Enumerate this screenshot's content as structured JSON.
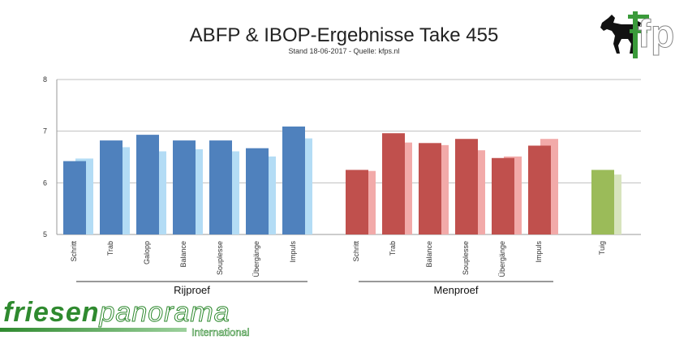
{
  "header": {
    "title": "ABFP & IBOP-Ergebnisse Take 455",
    "subtitle": "Stand 18-06-2017 - Quelle: kfps.nl"
  },
  "logo": {
    "letters": "fp",
    "icon": "horse-silhouette-icon"
  },
  "brand": {
    "main_part1": "friesen",
    "main_part2": "panorama",
    "sub": "International"
  },
  "chart_data": {
    "type": "bar",
    "ylim": [
      5,
      8
    ],
    "yticks": [
      "5",
      "6",
      "7",
      "8"
    ],
    "grid": true,
    "groups": [
      {
        "label": "Rijproef",
        "categories": [
          "Schritt",
          "Trab",
          "Galopp",
          "Balance",
          "Souplesse",
          "Übergänge",
          "Impuls"
        ],
        "colors": {
          "primary": "#4f81bd",
          "secondary": "#b3dcf5"
        },
        "series": [
          {
            "values": [
              6.42,
              6.82,
              6.93,
              6.82,
              6.82,
              6.67,
              7.09
            ]
          },
          {
            "values": [
              6.47,
              6.69,
              6.61,
              6.65,
              6.61,
              6.51,
              6.86
            ]
          }
        ]
      },
      {
        "label": "Menproef",
        "categories": [
          "Schritt",
          "Trab",
          "Balance",
          "Souplesse",
          "Übergänge",
          "Impuls"
        ],
        "colors": {
          "primary": "#c0504d",
          "secondary": "#f2aaa9"
        },
        "series": [
          {
            "values": [
              6.25,
              6.96,
              6.77,
              6.85,
              6.48,
              6.72
            ]
          },
          {
            "values": [
              6.23,
              6.78,
              6.73,
              6.63,
              6.51,
              6.85
            ]
          }
        ]
      },
      {
        "label": "",
        "categories": [
          "Tuig"
        ],
        "colors": {
          "primary": "#9bbb59",
          "secondary": "#d7e4bd"
        },
        "series": [
          {
            "values": [
              6.25
            ]
          },
          {
            "values": [
              6.16
            ]
          }
        ]
      }
    ]
  }
}
